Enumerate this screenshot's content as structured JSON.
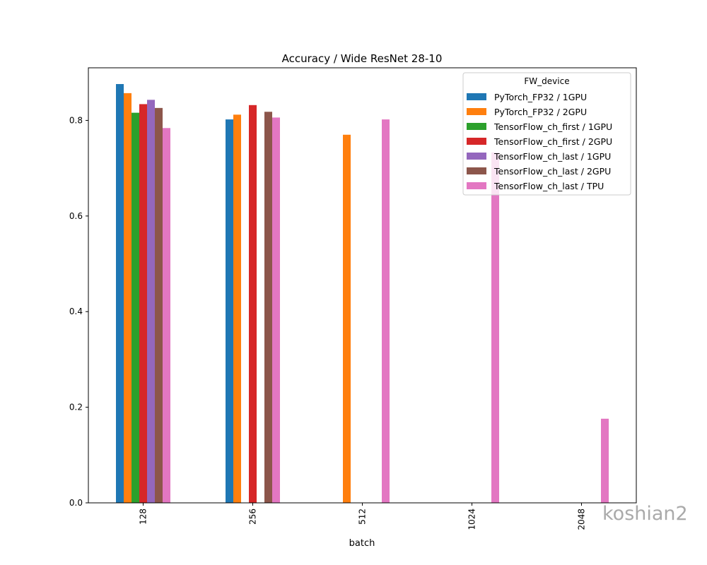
{
  "chart_data": {
    "type": "bar",
    "title": "Accuracy / Wide ResNet 28-10",
    "xlabel": "batch",
    "ylabel": "",
    "ylim": [
      0,
      0.91
    ],
    "yticks": [
      "0.0",
      "0.2",
      "0.4",
      "0.6",
      "0.8"
    ],
    "categories": [
      "128",
      "256",
      "512",
      "1024",
      "2048"
    ],
    "legend_title": "FW_device",
    "legend_position": "top-right",
    "grid": false,
    "series": [
      {
        "name": "PyTorch_FP32 / 1GPU",
        "color": "#1f77b4",
        "values": [
          0.876,
          0.802,
          null,
          null,
          null
        ]
      },
      {
        "name": "PyTorch_FP32 / 2GPU",
        "color": "#ff7f0e",
        "values": [
          0.857,
          0.812,
          0.77,
          null,
          null
        ]
      },
      {
        "name": "TensorFlow_ch_first / 1GPU",
        "color": "#2ca02c",
        "values": [
          0.816,
          null,
          null,
          null,
          null
        ]
      },
      {
        "name": "TensorFlow_ch_first / 2GPU",
        "color": "#d62728",
        "values": [
          0.834,
          0.832,
          null,
          null,
          null
        ]
      },
      {
        "name": "TensorFlow_ch_last / 1GPU",
        "color": "#9467bd",
        "values": [
          0.843,
          null,
          null,
          null,
          null
        ]
      },
      {
        "name": "TensorFlow_ch_last / 2GPU",
        "color": "#8c564b",
        "values": [
          0.826,
          0.818,
          null,
          null,
          null
        ]
      },
      {
        "name": "TensorFlow_ch_last / TPU",
        "color": "#e377c2",
        "values": [
          0.784,
          0.806,
          0.802,
          0.733,
          0.176
        ]
      }
    ]
  },
  "watermark": "koshian2"
}
